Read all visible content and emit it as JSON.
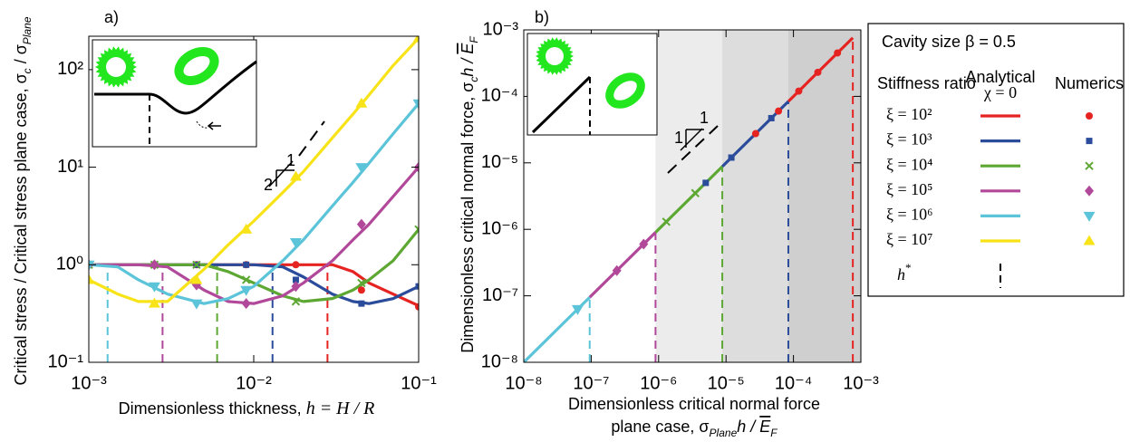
{
  "chart_data": [
    {
      "type": "line",
      "panel_label": "a)",
      "xlabel": [
        "Dimensionless thickness,  ",
        "h = H / R"
      ],
      "ylabel": [
        "Critical stress / Critical stress plane case,  σ",
        "c",
        " / σ",
        "Plane"
      ],
      "xscale": "log",
      "yscale": "log",
      "xlim": [
        0.001,
        0.1
      ],
      "ylim": [
        0.1,
        220
      ],
      "xticks": [
        {
          "value": 0.001,
          "label": "10⁻³"
        },
        {
          "value": 0.01,
          "label": "10⁻²"
        },
        {
          "value": 0.1,
          "label": "10⁻¹"
        }
      ],
      "yticks": [
        {
          "value": 0.1,
          "label": "10⁻¹"
        },
        {
          "value": 1,
          "label": "10⁰"
        },
        {
          "value": 10,
          "label": "10¹"
        },
        {
          "value": 100,
          "label": "10²"
        }
      ],
      "annotations": [
        "1",
        "2"
      ],
      "line_x": [
        0.001,
        0.0015,
        0.002,
        0.003,
        0.005,
        0.007,
        0.01,
        0.015,
        0.02,
        0.03,
        0.04,
        0.05,
        0.07,
        0.1
      ],
      "points_x": [
        0.001,
        0.0025,
        0.0045,
        0.009,
        0.018,
        0.045,
        0.1
      ],
      "series": [
        {
          "name": "ξ = 10²",
          "color": "#e52421",
          "marker": "o",
          "values": [
            1,
            1,
            1,
            1,
            1,
            1,
            1,
            1,
            1,
            1,
            0.85,
            0.65,
            0.5,
            0.38
          ],
          "points": [
            1,
            1,
            1,
            1,
            1,
            0.55,
            0.37
          ],
          "h_star": {
            "x": 0.028,
            "y": 1
          }
        },
        {
          "name": "ξ = 10³",
          "color": "#2b4b9b",
          "marker": "s",
          "values": [
            1,
            1,
            1,
            1,
            1,
            1,
            1,
            0.95,
            0.75,
            0.5,
            0.42,
            0.4,
            0.45,
            0.6
          ],
          "points": [
            1,
            1,
            1,
            1,
            0.7,
            0.4,
            0.6
          ],
          "h_star": {
            "x": 0.013,
            "y": 1
          }
        },
        {
          "name": "ξ = 10⁴",
          "color": "#5da833",
          "marker": "x",
          "values": [
            1,
            1,
            1,
            1,
            1,
            0.85,
            0.65,
            0.48,
            0.42,
            0.45,
            0.55,
            0.7,
            1.1,
            2.3
          ],
          "points": [
            1,
            1,
            1,
            0.7,
            0.42,
            0.65,
            2.3
          ],
          "h_star": {
            "x": 0.006,
            "y": 1
          }
        },
        {
          "name": "ξ = 10⁵",
          "color": "#b1489a",
          "marker": "d",
          "values": [
            1,
            1,
            1,
            0.95,
            0.55,
            0.42,
            0.4,
            0.48,
            0.65,
            1.1,
            1.8,
            2.6,
            5,
            10
          ],
          "points": [
            1,
            1,
            0.62,
            0.4,
            0.6,
            2.6,
            10
          ],
          "h_star": {
            "x": 0.0028,
            "y": 1
          }
        },
        {
          "name": "ξ = 10⁶",
          "color": "#5bc4d9",
          "marker": "v",
          "values": [
            1,
            0.95,
            0.7,
            0.5,
            0.4,
            0.45,
            0.6,
            1.1,
            1.8,
            4,
            7,
            11,
            22,
            45
          ],
          "points": [
            1,
            0.6,
            0.4,
            0.55,
            1.7,
            10,
            45
          ],
          "h_star": {
            "x": 0.0013,
            "y": 1
          }
        },
        {
          "name": "ξ = 10⁷",
          "color": "#f7e318",
          "marker": "^",
          "values": [
            0.7,
            0.5,
            0.42,
            0.42,
            0.9,
            1.6,
            2.8,
            5.5,
            9,
            20,
            35,
            55,
            110,
            210
          ],
          "points": [
            0.7,
            0.4,
            0.7,
            2.3,
            8,
            45,
            210
          ]
        }
      ],
      "legend": {
        "title": "Cavity size β = 0.5",
        "row_header": "Stiffness ratio",
        "analytical": [
          "Analytical",
          "χ = 0"
        ],
        "numerics": "Numerics",
        "h_star": [
          "h",
          "*"
        ]
      }
    },
    {
      "type": "line",
      "panel_label": "b)",
      "xlabel": [
        "Dimensionless critical normal force",
        "plane case,  σ",
        "Plane",
        "h / ",
        "E",
        "F"
      ],
      "ylabel": [
        "Dimensionless critical normal force,  σ",
        "c",
        "h / ",
        "E",
        "F"
      ],
      "xscale": "log",
      "yscale": "log",
      "xlim": [
        1e-08,
        0.001
      ],
      "ylim": [
        1e-08,
        0.001
      ],
      "xticks": [
        {
          "value": 1e-08,
          "label": "10⁻⁸"
        },
        {
          "value": 1e-07,
          "label": "10⁻⁷"
        },
        {
          "value": 1e-06,
          "label": "10⁻⁶"
        },
        {
          "value": 1e-05,
          "label": "10⁻⁵"
        },
        {
          "value": 0.0001,
          "label": "10⁻⁴"
        },
        {
          "value": 0.001,
          "label": "10⁻³"
        }
      ],
      "yticks": [
        {
          "value": 1e-08,
          "label": "10⁻⁸"
        },
        {
          "value": 1e-07,
          "label": "10⁻⁷"
        },
        {
          "value": 1e-06,
          "label": "10⁻⁶"
        },
        {
          "value": 1e-05,
          "label": "10⁻⁵"
        },
        {
          "value": 0.0001,
          "label": "10⁻⁴"
        },
        {
          "value": 0.001,
          "label": "10⁻³"
        }
      ],
      "annotations": [
        "1",
        "1"
      ],
      "series": [
        {
          "color": "#e52421",
          "marker": "o",
          "x": [
            8.4e-05,
            0.00076
          ],
          "values": [
            8.4e-05,
            0.00076
          ],
          "points_x": [
            2.75e-05,
            6e-05,
            0.00012,
            0.00023,
            0.00045
          ],
          "points": [
            2.75e-05,
            6e-05,
            0.00012,
            0.00023,
            0.00045
          ],
          "h_star": {
            "x": 0.00076,
            "y": 0.00076
          }
        },
        {
          "color": "#2b4b9b",
          "marker": "s",
          "x": [
            8.8e-06,
            8.4e-05
          ],
          "values": [
            8.8e-06,
            8.4e-05
          ],
          "points_x": [
            5e-06,
            1.2e-05,
            4.7e-05
          ],
          "points": [
            5e-06,
            1.2e-05,
            4.7e-05
          ],
          "h_star": {
            "x": 8.4e-05,
            "y": 8.4e-05
          },
          "shade": "#cfcfcf"
        },
        {
          "color": "#5da833",
          "marker": "x",
          "x": [
            9e-07,
            8.8e-06
          ],
          "values": [
            9e-07,
            8.8e-06
          ],
          "points_x": [
            1.3e-06,
            3.5e-06
          ],
          "points": [
            1.3e-06,
            3.5e-06
          ],
          "h_star": {
            "x": 8.8e-06,
            "y": 8.8e-06
          },
          "shade": "#dddddd"
        },
        {
          "color": "#b1489a",
          "marker": "d",
          "x": [
            9.5e-08,
            9e-07
          ],
          "values": [
            9.5e-08,
            9e-07
          ],
          "points_x": [
            2.4e-07,
            6e-07
          ],
          "points": [
            2.4e-07,
            6e-07
          ],
          "h_star": {
            "x": 9e-07,
            "y": 9e-07
          },
          "shade": "#ececec"
        },
        {
          "color": "#5bc4d9",
          "marker": "v",
          "x": [
            1e-08,
            9.5e-08
          ],
          "values": [
            1e-08,
            9.5e-08
          ],
          "points_x": [
            6.3e-08
          ],
          "points": [
            6.3e-08
          ],
          "h_star": {
            "x": 9.5e-08,
            "y": 9.5e-08
          }
        }
      ]
    }
  ]
}
